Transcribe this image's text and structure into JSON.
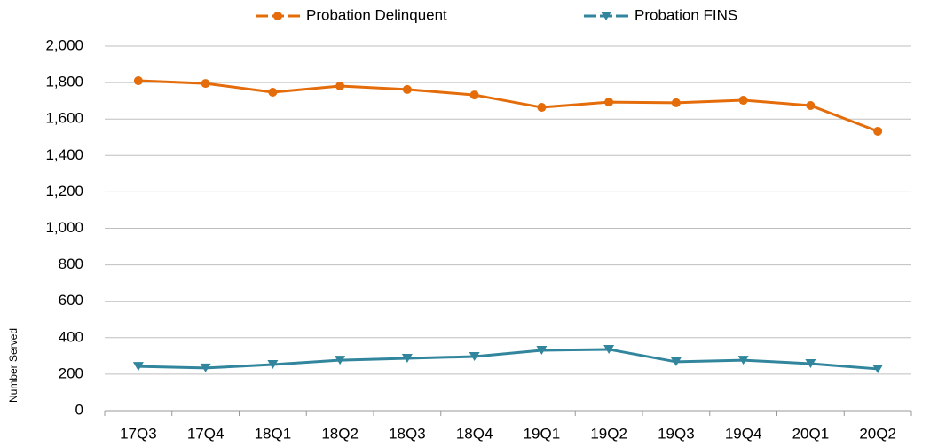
{
  "chart_data": {
    "type": "line",
    "y_label": "Number Served",
    "categories": [
      "17Q3",
      "17Q4",
      "18Q1",
      "18Q2",
      "18Q3",
      "18Q4",
      "19Q1",
      "19Q2",
      "19Q3",
      "19Q4",
      "20Q1",
      "20Q2"
    ],
    "series": [
      {
        "name": "Probation Delinquent",
        "color": "#e46c0a",
        "marker": "circle",
        "values": [
          1810,
          1795,
          1747,
          1781,
          1762,
          1732,
          1664,
          1693,
          1689,
          1703,
          1674,
          1533
        ]
      },
      {
        "name": "Probation FINS",
        "color": "#31859c",
        "marker": "triangle-down",
        "values": [
          243,
          234,
          253,
          277,
          287,
          297,
          331,
          336,
          268,
          277,
          258,
          229
        ]
      }
    ],
    "ylim": [
      0,
      2000
    ],
    "yticks": [
      0,
      200,
      400,
      600,
      800,
      {
        "value": 1000,
        "label": "1,000"
      },
      {
        "value": 1200,
        "label": "1,200"
      },
      {
        "value": 1400,
        "label": "1,400"
      },
      {
        "value": 1600,
        "label": "1,600"
      },
      {
        "value": 1800,
        "label": "1,800"
      },
      {
        "value": 2000,
        "label": "2,000"
      }
    ],
    "grid": true,
    "legend": "top"
  }
}
